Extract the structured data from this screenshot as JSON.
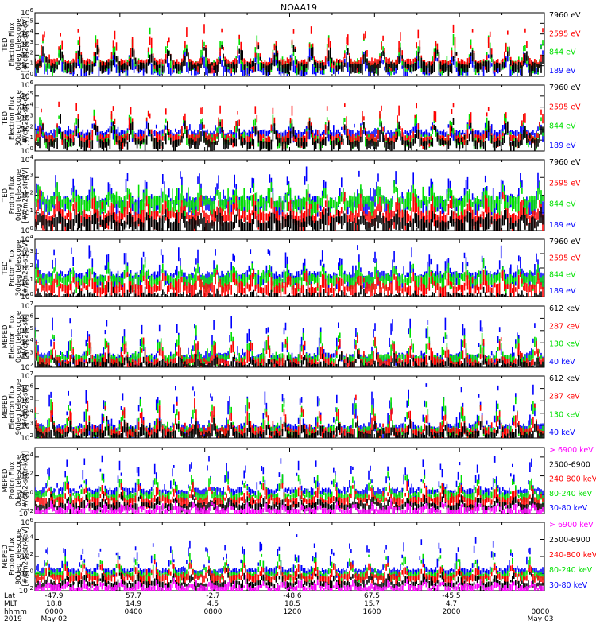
{
  "title": "NOAA19",
  "colors": {
    "black": "#000000",
    "red": "#ff0000",
    "green": "#00e000",
    "blue": "#0000ff",
    "magenta": "#ff00ff"
  },
  "chart_data": [
    {
      "type": "line",
      "scale": "log",
      "ylabel": [
        "TED",
        "Electron Flux",
        "0deg telescope",
        "[#/cm2-s-str-eV]"
      ],
      "yticks": [
        "10^0",
        "10^1",
        "10^2",
        "10^3",
        "10^4",
        "10^5",
        "10^6"
      ],
      "ylim": [
        1,
        1000000
      ],
      "series": [
        {
          "name": "7960 eV",
          "color": "black",
          "base": 1.2,
          "peak": 3.0
        },
        {
          "name": "2595 eV",
          "color": "red",
          "base": 1.5,
          "peak": 4.5
        },
        {
          "name": "844 eV",
          "color": "green",
          "base": 1.3,
          "peak": 3.8
        },
        {
          "name": "189 eV",
          "color": "blue",
          "base": 1.0,
          "peak": 2.5
        }
      ]
    },
    {
      "type": "line",
      "scale": "log",
      "ylabel": [
        "TED",
        "Electron Flux",
        "30deg telescope",
        "[#/cm2-s-str-eV]"
      ],
      "yticks": [
        "10^0",
        "10^1",
        "10^2",
        "10^3",
        "10^4",
        "10^5",
        "10^6"
      ],
      "ylim": [
        1,
        1000000
      ],
      "series": [
        {
          "name": "7960 eV",
          "color": "black",
          "base": 1.0,
          "peak": 2.8
        },
        {
          "name": "2595 eV",
          "color": "red",
          "base": 1.4,
          "peak": 4.2
        },
        {
          "name": "844 eV",
          "color": "green",
          "base": 1.3,
          "peak": 3.5
        },
        {
          "name": "189 eV",
          "color": "blue",
          "base": 1.8,
          "peak": 2.6
        }
      ]
    },
    {
      "type": "line",
      "scale": "log",
      "ylabel": [
        "TED",
        "Proton Flux",
        "0deg telescope",
        "[#/cm2-s-str-eV]"
      ],
      "yticks": [
        "10^0",
        "10^1",
        "10^2",
        "10^3",
        "10^4"
      ],
      "ylim": [
        1,
        10000
      ],
      "series": [
        {
          "name": "7960 eV",
          "color": "black",
          "base": 0.6,
          "peak": 1.2
        },
        {
          "name": "2595 eV",
          "color": "red",
          "base": 1.0,
          "peak": 2.0
        },
        {
          "name": "844 eV",
          "color": "green",
          "base": 1.8,
          "peak": 2.6
        },
        {
          "name": "189 eV",
          "color": "blue",
          "base": 1.8,
          "peak": 3.4
        }
      ]
    },
    {
      "type": "line",
      "scale": "log",
      "ylabel": [
        "TED",
        "Proton Flux",
        "30deg telescope",
        "[#/cm2-s-str-eV]"
      ],
      "yticks": [
        "10^0",
        "10^1",
        "10^2",
        "10^3",
        "10^4"
      ],
      "ylim": [
        1,
        10000
      ],
      "series": [
        {
          "name": "7960 eV",
          "color": "black",
          "base": 0.1,
          "peak": 0.4
        },
        {
          "name": "2595 eV",
          "color": "red",
          "base": 0.8,
          "peak": 1.8
        },
        {
          "name": "844 eV",
          "color": "green",
          "base": 1.4,
          "peak": 2.4
        },
        {
          "name": "189 eV",
          "color": "blue",
          "base": 1.6,
          "peak": 3.4
        }
      ]
    },
    {
      "type": "line",
      "scale": "log",
      "ylabel": [
        "MEPED",
        "Electron Flux",
        "0deg telescope",
        "[#/cm2-s-str]"
      ],
      "yticks": [
        "10^2",
        "10^3",
        "10^4",
        "10^5",
        "10^6",
        "10^7"
      ],
      "ylim": [
        100,
        10000000
      ],
      "series": [
        {
          "name": "612 keV",
          "color": "black",
          "base": 2.3,
          "peak": 3.0
        },
        {
          "name": "287 keV",
          "color": "red",
          "base": 2.6,
          "peak": 4.5
        },
        {
          "name": "130 keV",
          "color": "green",
          "base": 2.9,
          "peak": 5.0
        },
        {
          "name": "40 keV",
          "color": "blue",
          "base": 3.0,
          "peak": 6.0
        }
      ]
    },
    {
      "type": "line",
      "scale": "log",
      "ylabel": [
        "MEPED",
        "Electron Flux",
        "90deg telescope",
        "[#/cm2-s-str]"
      ],
      "yticks": [
        "10^2",
        "10^3",
        "10^4",
        "10^5",
        "10^6",
        "10^7"
      ],
      "ylim": [
        100,
        10000000
      ],
      "series": [
        {
          "name": "612 keV",
          "color": "black",
          "base": 2.4,
          "peak": 3.5
        },
        {
          "name": "287 keV",
          "color": "red",
          "base": 2.7,
          "peak": 4.8
        },
        {
          "name": "130 keV",
          "color": "green",
          "base": 2.8,
          "peak": 5.2
        },
        {
          "name": "40 keV",
          "color": "blue",
          "base": 3.0,
          "peak": 6.2
        }
      ]
    },
    {
      "type": "line",
      "scale": "log",
      "ylabel": [
        "MEPED",
        "Proton Flux",
        "0deg telescope",
        "[#/cm2-s-str-keV]"
      ],
      "yticks": [
        "10^-2",
        "10^0",
        "10^2",
        "10^4"
      ],
      "ylim": [
        0.01,
        100000
      ],
      "series": [
        {
          "name": "> 6900 keV",
          "color": "magenta",
          "base": -1.5,
          "peak": -0.8
        },
        {
          "name": "2500-6900",
          "color": "black",
          "base": -1.0,
          "peak": 0.0
        },
        {
          "name": "240-800 keV",
          "color": "red",
          "base": -0.4,
          "peak": 1.2
        },
        {
          "name": "80-240 keV",
          "color": "green",
          "base": 0.1,
          "peak": 2.2
        },
        {
          "name": "30-80 keV",
          "color": "blue",
          "base": 0.6,
          "peak": 3.8
        }
      ]
    },
    {
      "type": "line",
      "scale": "log",
      "ylabel": [
        "MEPED",
        "Proton Flux",
        "90deg telescope",
        "[#/cm2-s-str-keV]"
      ],
      "yticks": [
        "10^-2",
        "10^0",
        "10^2",
        "10^4",
        "10^6"
      ],
      "ylim": [
        0.01,
        1000000
      ],
      "series": [
        {
          "name": "> 6900 keV",
          "color": "magenta",
          "base": -1.5,
          "peak": -0.8
        },
        {
          "name": "2500-6900",
          "color": "black",
          "base": -1.0,
          "peak": 0.2
        },
        {
          "name": "240-800 keV",
          "color": "red",
          "base": -0.2,
          "peak": 1.4
        },
        {
          "name": "80-240 keV",
          "color": "green",
          "base": 0.1,
          "peak": 2.4
        },
        {
          "name": "30-80 keV",
          "color": "blue",
          "base": 0.5,
          "peak": 4.0
        }
      ]
    }
  ],
  "x_axis": {
    "row_labels": [
      "Lat",
      "MLT",
      "hhmm",
      "2019"
    ],
    "columns": [
      {
        "lat": "-47.9",
        "mlt": "18.8",
        "hhmm": "0000",
        "date": "May 02"
      },
      {
        "lat": "57.7",
        "mlt": "14.9",
        "hhmm": "0400",
        "date": ""
      },
      {
        "lat": "-2.7",
        "mlt": "4.5",
        "hhmm": "0800",
        "date": ""
      },
      {
        "lat": "-48.6",
        "mlt": "18.5",
        "hhmm": "1200",
        "date": ""
      },
      {
        "lat": "67.5",
        "mlt": "15.7",
        "hhmm": "1600",
        "date": ""
      },
      {
        "lat": "-45.5",
        "mlt": "4.7",
        "hhmm": "2000",
        "date": ""
      },
      {
        "lat": "",
        "mlt": "",
        "hhmm": "0000",
        "date": "May 03"
      }
    ]
  }
}
